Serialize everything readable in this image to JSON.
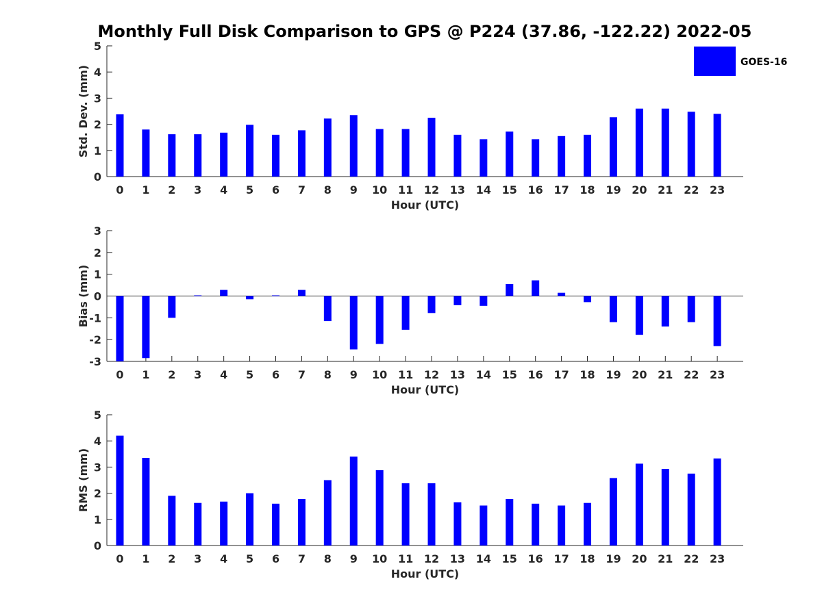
{
  "title": "Monthly Full Disk Comparison to GPS @ P224 (37.86, -122.22) 2022-05",
  "legend": {
    "label": "GOES-16",
    "color": "#0000ff"
  },
  "chart_data": [
    {
      "type": "bar",
      "name": "std",
      "xlabel": "Hour (UTC)",
      "ylabel": "Std. Dev. (mm)",
      "ylim": [
        0,
        5
      ],
      "yticks": [
        "0",
        "1",
        "2",
        "3",
        "4",
        "5"
      ],
      "categories": [
        "0",
        "1",
        "2",
        "3",
        "4",
        "5",
        "6",
        "7",
        "8",
        "9",
        "10",
        "11",
        "12",
        "13",
        "14",
        "15",
        "16",
        "17",
        "18",
        "19",
        "20",
        "21",
        "22",
        "23"
      ],
      "series": [
        {
          "name": "GOES-16",
          "color": "#0000ff",
          "values": [
            2.38,
            1.8,
            1.62,
            1.62,
            1.68,
            1.98,
            1.6,
            1.77,
            2.22,
            2.35,
            1.82,
            1.82,
            2.25,
            1.6,
            1.43,
            1.72,
            1.43,
            1.55,
            1.6,
            2.27,
            2.6,
            2.6,
            2.48,
            2.4
          ]
        }
      ],
      "grid": false,
      "legend_position": "top-right"
    },
    {
      "type": "bar",
      "name": "bias",
      "xlabel": "Hour (UTC)",
      "ylabel": "Bias (mm)",
      "ylim": [
        -3,
        3
      ],
      "yticks": [
        "-3",
        "-2",
        "-1",
        "0",
        "1",
        "2",
        "3"
      ],
      "categories": [
        "0",
        "1",
        "2",
        "3",
        "4",
        "5",
        "6",
        "7",
        "8",
        "9",
        "10",
        "11",
        "12",
        "13",
        "14",
        "15",
        "16",
        "17",
        "18",
        "19",
        "20",
        "21",
        "22",
        "23"
      ],
      "series": [
        {
          "name": "GOES-16",
          "color": "#0000ff",
          "values": [
            -3.0,
            -2.85,
            -1.0,
            0.03,
            0.28,
            -0.15,
            0.03,
            0.28,
            -1.15,
            -2.45,
            -2.2,
            -1.55,
            -0.78,
            -0.42,
            -0.45,
            0.55,
            0.72,
            0.15,
            -0.28,
            -1.2,
            -1.78,
            -1.4,
            -1.2,
            -2.3
          ]
        }
      ],
      "grid": false,
      "zero_line": true
    },
    {
      "type": "bar",
      "name": "rms",
      "xlabel": "Hour (UTC)",
      "ylabel": "RMS (mm)",
      "ylim": [
        0,
        5
      ],
      "yticks": [
        "0",
        "1",
        "2",
        "3",
        "4",
        "5"
      ],
      "categories": [
        "0",
        "1",
        "2",
        "3",
        "4",
        "5",
        "6",
        "7",
        "8",
        "9",
        "10",
        "11",
        "12",
        "13",
        "14",
        "15",
        "16",
        "17",
        "18",
        "19",
        "20",
        "21",
        "22",
        "23"
      ],
      "series": [
        {
          "name": "GOES-16",
          "color": "#0000ff",
          "values": [
            4.2,
            3.35,
            1.9,
            1.63,
            1.68,
            2.0,
            1.6,
            1.78,
            2.5,
            3.4,
            2.88,
            2.38,
            2.38,
            1.65,
            1.53,
            1.78,
            1.6,
            1.53,
            1.63,
            2.58,
            3.13,
            2.93,
            2.75,
            3.33
          ]
        }
      ],
      "grid": false
    }
  ]
}
